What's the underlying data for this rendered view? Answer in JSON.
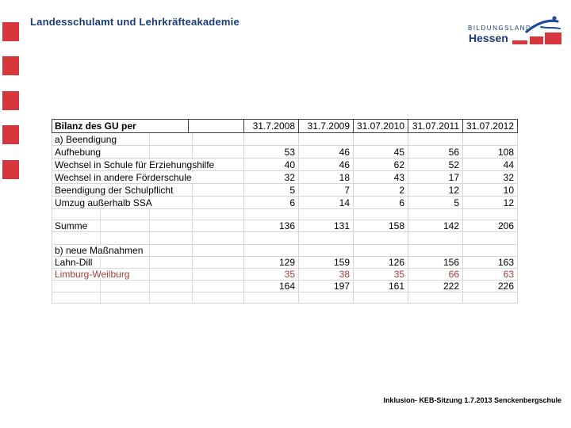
{
  "slide": {
    "title": "Landesschulamt und Lehrkräfteakademie",
    "footer": "Inklusion- KEB-Sitzung 1.7.2013 Senckenbergschule"
  },
  "logo": {
    "line1": "BILDUNGSLAND",
    "line2": "Hessen"
  },
  "colors": {
    "title_blue": "#1c3b7c",
    "hessen_red": "#d6363c",
    "highlight_red_text": "#a33c3c",
    "gridline_gray": "#d7d7d7",
    "header_border": "#3f3f3f"
  },
  "table": {
    "header": {
      "label": "Bilanz des GU per",
      "columns": [
        "31.7.2008",
        "31.7.2009",
        "31.07.2010",
        "31.07.2011",
        "31.07.2012"
      ]
    },
    "rows": [
      {
        "label": "a) Beendigung",
        "values": [
          "",
          "",
          "",
          "",
          ""
        ]
      },
      {
        "label": "Aufhebung",
        "values": [
          "53",
          "46",
          "45",
          "56",
          "108"
        ]
      },
      {
        "label": "Wechsel in Schule für Erziehungshilfe",
        "values": [
          "40",
          "46",
          "62",
          "52",
          "44"
        ]
      },
      {
        "label": "Wechsel in andere Förderschule",
        "values": [
          "32",
          "18",
          "43",
          "17",
          "32"
        ]
      },
      {
        "label": "Beendigung der Schulpflicht",
        "values": [
          "5",
          "7",
          "2",
          "12",
          "10"
        ]
      },
      {
        "label": "Umzug außerhalb SSA",
        "values": [
          "6",
          "14",
          "6",
          "5",
          "12"
        ]
      },
      {
        "label": "",
        "values": [
          "",
          "",
          "",
          "",
          ""
        ]
      },
      {
        "label": "Summe",
        "values": [
          "136",
          "131",
          "158",
          "142",
          "206"
        ]
      },
      {
        "label": "",
        "values": [
          "",
          "",
          "",
          "",
          ""
        ]
      },
      {
        "label": "b) neue Maßnahmen",
        "values": [
          "",
          "",
          "",
          "",
          ""
        ]
      },
      {
        "label": "Lahn-Dill",
        "values": [
          "129",
          "159",
          "126",
          "156",
          "163"
        ]
      },
      {
        "label": "Limburg-Weilburg",
        "values": [
          "35",
          "38",
          "35",
          "66",
          "63"
        ],
        "red": true
      },
      {
        "label": "",
        "values": [
          "164",
          "197",
          "161",
          "222",
          "226"
        ]
      },
      {
        "label": "",
        "values": [
          "",
          "",
          "",
          "",
          ""
        ]
      }
    ]
  }
}
